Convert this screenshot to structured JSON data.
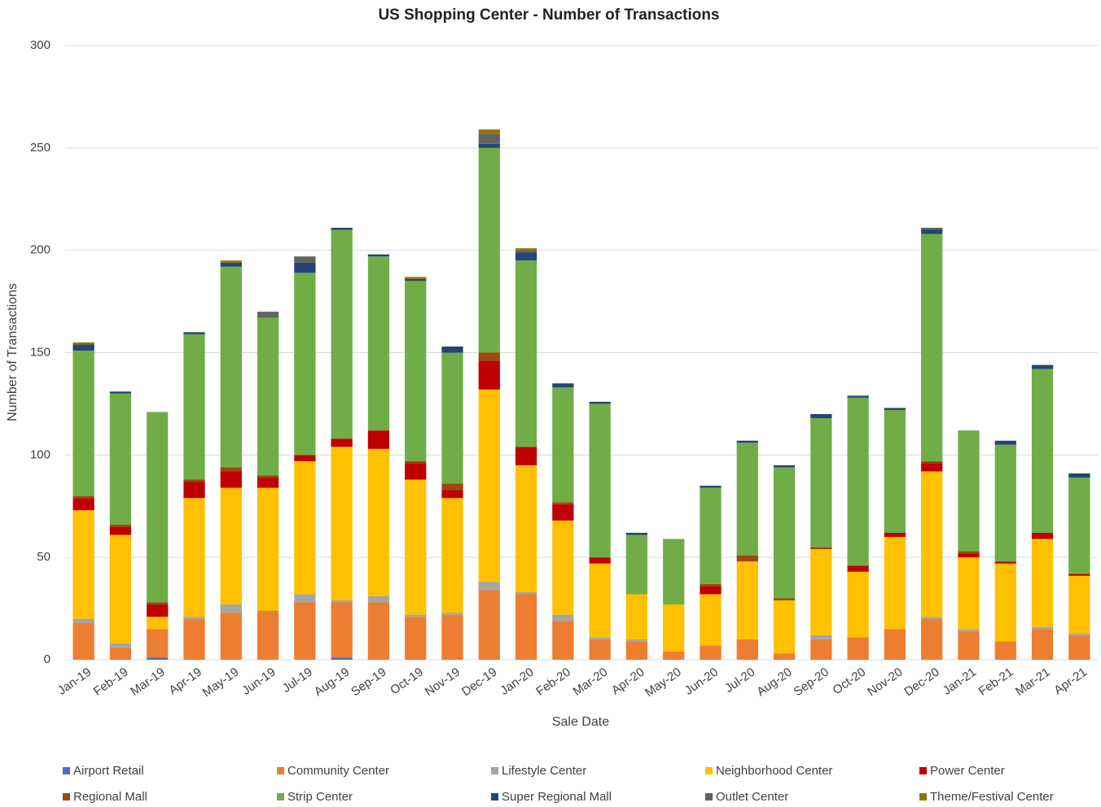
{
  "chart_data": {
    "type": "stacked_bar",
    "title": "US Shopping Center - Number of Transactions",
    "x_label": "Sale Date",
    "y_label": "Number of Transactions",
    "categories": [
      "Jan-19",
      "Feb-19",
      "Mar-19",
      "Apr-19",
      "May-19",
      "Jun-19",
      "Jul-19",
      "Aug-19",
      "Sep-19",
      "Oct-19",
      "Nov-19",
      "Dec-19",
      "Jan-20",
      "Feb-20",
      "Mar-20",
      "Apr-20",
      "May-20",
      "Jun-20",
      "Jul-20",
      "Aug-20",
      "Sep-20",
      "Oct-20",
      "Nov-20",
      "Dec-20",
      "Jan-21",
      "Feb-21",
      "Mar-21",
      "Apr-21"
    ],
    "ylim": [
      0,
      300
    ],
    "yticks": [
      0,
      50,
      100,
      150,
      200,
      250,
      300
    ],
    "grid": true,
    "legend": "bottom",
    "series": [
      {
        "name": "Airport Retail",
        "color": "#4472c4",
        "values": [
          0,
          0,
          1,
          0,
          0,
          0,
          0,
          1,
          0,
          0,
          0,
          0,
          0,
          0,
          0,
          0,
          0,
          0,
          0,
          0,
          0,
          0,
          0,
          0,
          0,
          0,
          0,
          0
        ]
      },
      {
        "name": "Community Center",
        "color": "#ed7d31",
        "values": [
          18,
          6,
          14,
          20,
          23,
          24,
          28,
          27,
          28,
          21,
          22,
          34,
          32,
          19,
          10,
          9,
          4,
          7,
          10,
          3,
          10,
          11,
          15,
          20,
          14,
          9,
          15,
          12
        ]
      },
      {
        "name": "Lifestyle Center",
        "color": "#a5a5a5",
        "values": [
          2,
          2,
          0,
          1,
          4,
          0,
          4,
          1,
          3,
          1,
          1,
          4,
          1,
          3,
          1,
          1,
          0,
          0,
          0,
          0,
          2,
          0,
          0,
          1,
          1,
          0,
          1,
          1
        ]
      },
      {
        "name": "Neighborhood Center",
        "color": "#ffc000",
        "values": [
          53,
          53,
          6,
          58,
          57,
          60,
          65,
          75,
          72,
          66,
          56,
          94,
          62,
          46,
          36,
          22,
          23,
          25,
          38,
          26,
          42,
          32,
          45,
          71,
          35,
          38,
          43,
          28
        ]
      },
      {
        "name": "Power Center",
        "color": "#c00000",
        "values": [
          6,
          4,
          6,
          8,
          8,
          5,
          3,
          4,
          9,
          8,
          4,
          14,
          9,
          8,
          3,
          0,
          0,
          4,
          0,
          0,
          0,
          3,
          2,
          4,
          2,
          1,
          3,
          1
        ]
      },
      {
        "name": "Regional Mall",
        "color": "#9e480e",
        "values": [
          1,
          1,
          1,
          1,
          2,
          1,
          0,
          0,
          0,
          1,
          3,
          4,
          0,
          1,
          0,
          0,
          0,
          1,
          3,
          1,
          1,
          0,
          0,
          1,
          1,
          0,
          0,
          0
        ]
      },
      {
        "name": "Strip Center",
        "color": "#70ad47",
        "values": [
          71,
          64,
          93,
          71,
          98,
          77,
          89,
          102,
          85,
          88,
          64,
          100,
          91,
          56,
          75,
          29,
          32,
          47,
          55,
          64,
          63,
          82,
          60,
          111,
          59,
          57,
          80,
          47
        ]
      },
      {
        "name": "Super Regional Mall",
        "color": "#264478",
        "values": [
          3,
          1,
          0,
          1,
          2,
          0,
          5,
          1,
          1,
          1,
          3,
          2,
          4,
          2,
          1,
          1,
          0,
          1,
          1,
          1,
          2,
          1,
          1,
          2,
          0,
          2,
          2,
          2
        ]
      },
      {
        "name": "Outlet Center",
        "color": "#636363",
        "values": [
          0,
          0,
          0,
          0,
          0,
          3,
          3,
          0,
          0,
          0,
          0,
          5,
          1,
          0,
          0,
          0,
          0,
          0,
          0,
          0,
          0,
          0,
          0,
          1,
          0,
          0,
          0,
          0
        ]
      },
      {
        "name": "Theme/Festival Center",
        "color": "#997300",
        "values": [
          1,
          0,
          0,
          0,
          1,
          0,
          0,
          0,
          0,
          1,
          0,
          2,
          1,
          0,
          0,
          0,
          0,
          0,
          0,
          0,
          0,
          0,
          0,
          0,
          0,
          0,
          0,
          0
        ]
      }
    ]
  }
}
